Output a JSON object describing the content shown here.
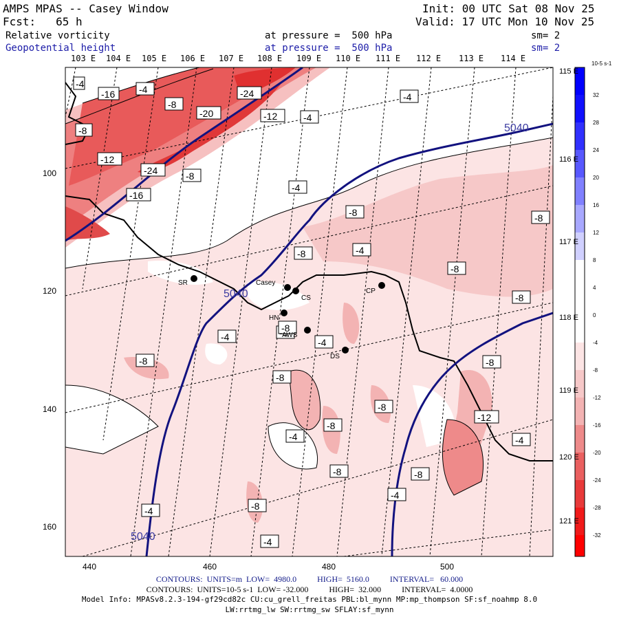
{
  "header": {
    "model": "AMPS MPAS -- Casey Window",
    "init": "Init: 00 UTC Sat 08 Nov 25",
    "fcst": "Fcst:   65 h",
    "valid": "Valid: 17 UTC Mon 10 Nov 25"
  },
  "fields": [
    {
      "name": "Relative vorticity",
      "level": "at pressure =  500 hPa",
      "smooth": "sm= 2"
    },
    {
      "name": "Geopotential height",
      "level": "at pressure =  500 hPa",
      "smooth": "sm= 2"
    }
  ],
  "axes": {
    "lon_labels": [
      "103 E",
      "104 E",
      "105 E",
      "106 E",
      "107 E",
      "108 E",
      "109 E",
      "110 E",
      "111 E",
      "112 E",
      "113 E",
      "114 E"
    ],
    "right_lon_labels": [
      "115 E",
      "116 E",
      "117 E",
      "118 E",
      "119 E",
      "120 E",
      "121 E"
    ],
    "y_ticks": [
      "100",
      "120",
      "140",
      "160"
    ],
    "x_ticks": [
      "440",
      "460",
      "480",
      "500"
    ]
  },
  "colorbar": {
    "unit": "10-5 s-1",
    "labels": [
      "32",
      "28",
      "24",
      "20",
      "16",
      "12",
      "8",
      "4",
      "0",
      "-4",
      "-8",
      "-12",
      "-16",
      "-20",
      "-24",
      "-28",
      "-32"
    ],
    "colors": {
      "pos_strong": "#0000ff",
      "pos_mid": "#4a4aff",
      "pos_light": "#a8a8ff",
      "neg_light": "#fce4e4",
      "neg_mid": "#f3b3b3",
      "neg_strong": "#ee7070",
      "neg_max": "#ff0000"
    }
  },
  "map": {
    "stations": [
      {
        "label": "SR"
      },
      {
        "label": "Casey"
      },
      {
        "label": "CS"
      },
      {
        "label": "HN"
      },
      {
        "label": "AWS"
      },
      {
        "label": "CP"
      },
      {
        "label": "DS"
      }
    ],
    "height_labels": [
      "5040",
      "5040",
      "5040"
    ],
    "vort_labels": [
      "-4",
      "-16",
      "-4",
      "-8",
      "-24",
      "-20",
      "-12",
      "-4",
      "-4",
      "-8",
      "-12",
      "-24",
      "-8",
      "-16",
      "-4",
      "-8",
      "-8",
      "-8",
      "-4",
      "-8",
      "-8",
      "-8",
      "-4",
      "-8",
      "-4",
      "-8",
      "-8",
      "-8",
      "-12",
      "-4",
      "-4",
      "-8",
      "-8",
      "-8",
      "-4",
      "-4",
      "-8",
      "-8",
      "-4"
    ]
  },
  "footer": {
    "height_contours": "CONTOURS:  UNITS=m  LOW=  4980.0          HIGH=  5160.0          INTERVAL=   60.000",
    "vort_contours": "CONTOURS:  UNITS=10-5 s-1  LOW= -32.000          HIGH=  32.000          INTERVAL=  4.0000",
    "model_info": "Model Info: MPASv8.2.3-194-gf29cd82c CU:cu_grell_freitas PBL:bl_mynn MP:mp_thompson SF:sf_noahmp 8.0",
    "model_info2": "LW:rrtmg_lw SW:rrtmg_sw SFLAY:sf_mynn"
  }
}
